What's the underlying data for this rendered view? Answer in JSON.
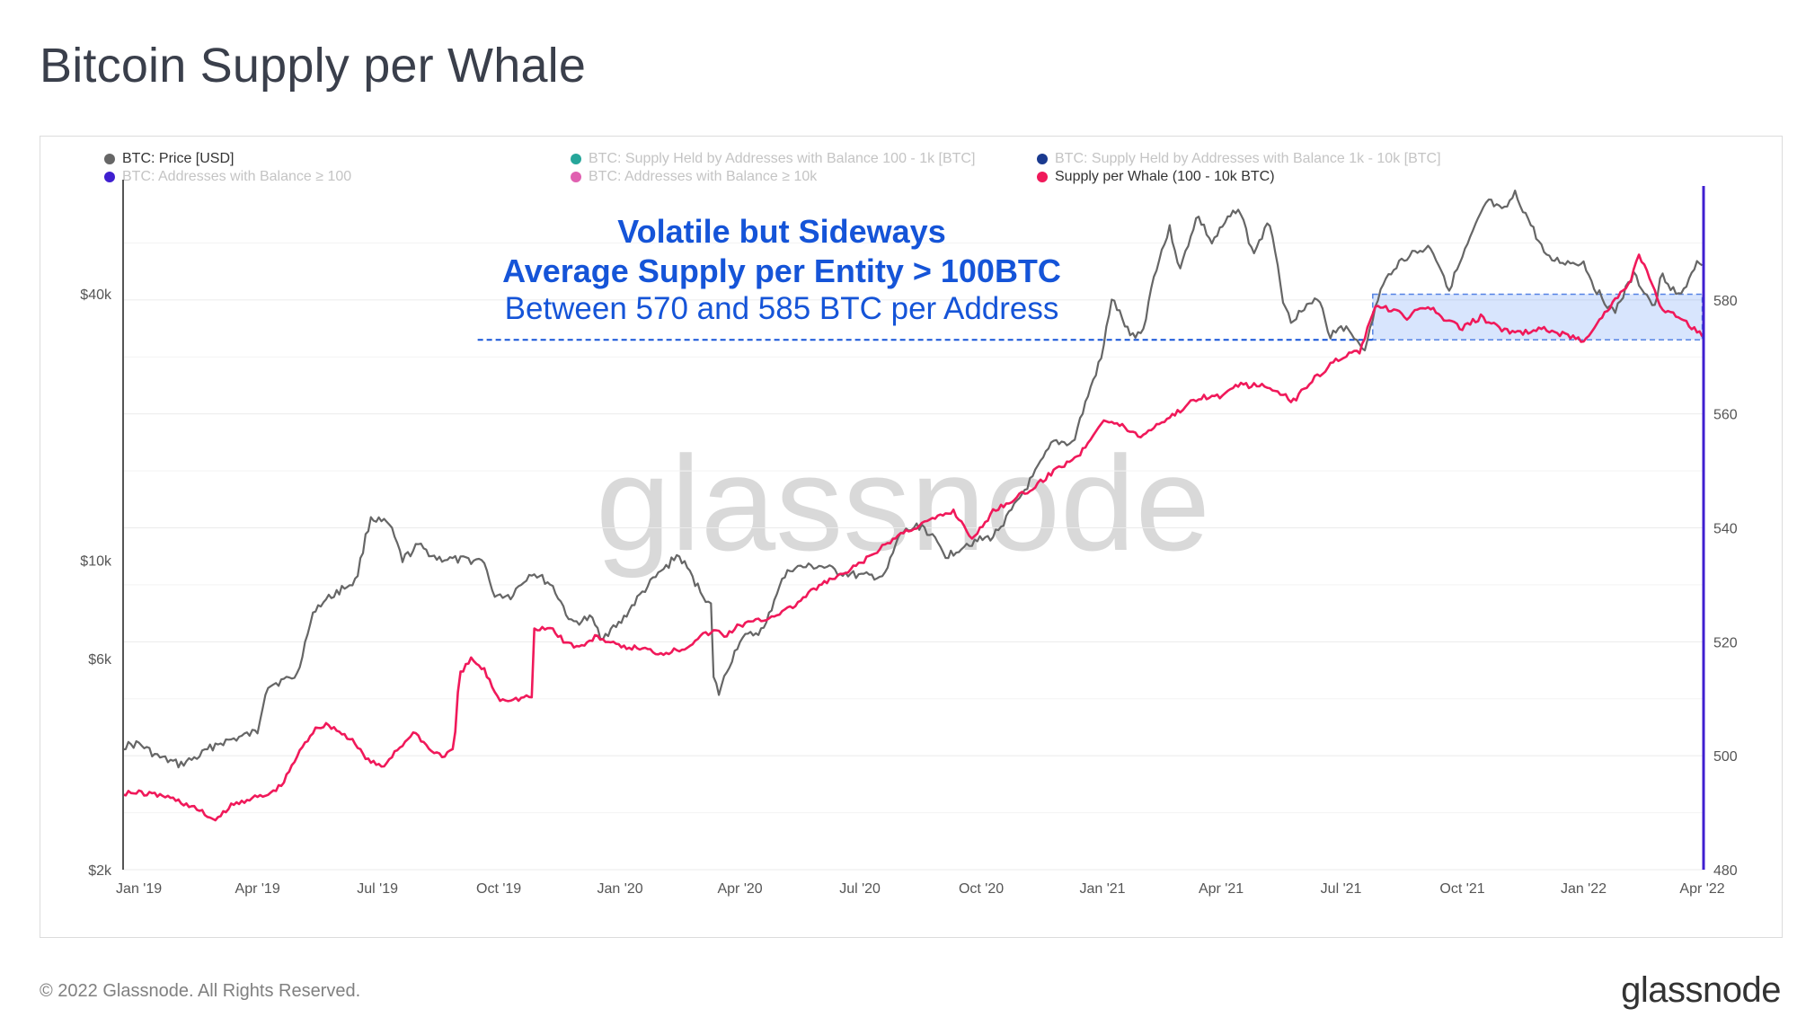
{
  "page": {
    "title": "Bitcoin Supply per Whale",
    "copyright": "© 2022 Glassnode. All Rights Reserved.",
    "brand": "glassnode"
  },
  "chart_data": {
    "type": "line",
    "watermark": "glassnode",
    "legend": [
      {
        "label": "BTC: Price [USD]",
        "color": "#666666",
        "active": true
      },
      {
        "label": "BTC: Supply Held by Addresses with Balance 100 - 1k [BTC]",
        "color": "#26a69a",
        "active": false
      },
      {
        "label": "BTC: Supply Held by Addresses with Balance 1k - 10k [BTC]",
        "color": "#1a3a8f",
        "active": false
      },
      {
        "label": "BTC: Addresses with Balance ≥ 100",
        "color": "#3f1fd0",
        "active": false
      },
      {
        "label": "BTC: Addresses with Balance ≥ 10k",
        "color": "#e060b0",
        "active": false
      },
      {
        "label": "Supply per Whale (100 - 10k BTC)",
        "color": "#f0195a",
        "active": true
      }
    ],
    "annotations": [
      "Volatile but Sideways",
      "Average Supply per Entity > 100BTC",
      "Between 570 and 585 BTC per Address"
    ],
    "x_axis": {
      "ticks": [
        "Jan '19",
        "Apr '19",
        "Jul '19",
        "Oct '19",
        "Jan '20",
        "Apr '20",
        "Jul '20",
        "Oct '20",
        "Jan '21",
        "Apr '21",
        "Jul '21",
        "Oct '21",
        "Jan '22",
        "Apr '22"
      ],
      "range": [
        "2018-12-20",
        "2022-04-02"
      ]
    },
    "y_axis_left": {
      "scale": "log",
      "unit": "USD",
      "range": [
        2000,
        70000
      ],
      "ticks": [
        {
          "value": 2000,
          "label": "$2k"
        },
        {
          "value": 6000,
          "label": "$6k"
        },
        {
          "value": 10000,
          "label": "$10k"
        },
        {
          "value": 40000,
          "label": "$40k"
        }
      ]
    },
    "y_axis_right": {
      "scale": "linear",
      "unit": "BTC",
      "range": [
        480,
        600
      ],
      "ticks": [
        480,
        500,
        520,
        540,
        560,
        580
      ]
    },
    "highlight_band": {
      "from": "2021-07-25",
      "to": "2022-04-01",
      "low": 573,
      "high": 581
    },
    "reference_line": {
      "from": "2019-09-15",
      "to": "2021-07-25",
      "value": 573
    },
    "series": [
      {
        "name": "BTC: Price [USD]",
        "axis": "left",
        "color": "#666666",
        "points": [
          [
            "2018-12-20",
            3800
          ],
          [
            "2019-01-01",
            3850
          ],
          [
            "2019-01-15",
            3600
          ],
          [
            "2019-02-01",
            3450
          ],
          [
            "2019-02-15",
            3600
          ],
          [
            "2019-03-01",
            3850
          ],
          [
            "2019-03-15",
            3950
          ],
          [
            "2019-04-01",
            4100
          ],
          [
            "2019-04-08",
            5200
          ],
          [
            "2019-04-25",
            5400
          ],
          [
            "2019-05-01",
            5500
          ],
          [
            "2019-05-15",
            7800
          ],
          [
            "2019-06-01",
            8500
          ],
          [
            "2019-06-15",
            9000
          ],
          [
            "2019-06-26",
            12500
          ],
          [
            "2019-07-10",
            12000
          ],
          [
            "2019-07-20",
            10000
          ],
          [
            "2019-08-01",
            10800
          ],
          [
            "2019-08-15",
            10100
          ],
          [
            "2019-09-01",
            10000
          ],
          [
            "2019-09-20",
            10000
          ],
          [
            "2019-09-26",
            8400
          ],
          [
            "2019-10-10",
            8300
          ],
          [
            "2019-10-26",
            9400
          ],
          [
            "2019-11-10",
            8800
          ],
          [
            "2019-11-25",
            7200
          ],
          [
            "2019-12-10",
            7400
          ],
          [
            "2019-12-18",
            6700
          ],
          [
            "2020-01-01",
            7200
          ],
          [
            "2020-01-20",
            8600
          ],
          [
            "2020-02-10",
            10000
          ],
          [
            "2020-02-14",
            10300
          ],
          [
            "2020-03-01",
            8600
          ],
          [
            "2020-03-10",
            7900
          ],
          [
            "2020-03-12",
            5400
          ],
          [
            "2020-03-16",
            5000
          ],
          [
            "2020-04-01",
            6600
          ],
          [
            "2020-04-20",
            7000
          ],
          [
            "2020-05-01",
            8800
          ],
          [
            "2020-05-10",
            9600
          ],
          [
            "2020-06-01",
            9700
          ],
          [
            "2020-06-15",
            9400
          ],
          [
            "2020-07-01",
            9200
          ],
          [
            "2020-07-20",
            9200
          ],
          [
            "2020-08-01",
            11500
          ],
          [
            "2020-08-17",
            12000
          ],
          [
            "2020-09-05",
            10200
          ],
          [
            "2020-09-20",
            10900
          ],
          [
            "2020-10-10",
            11300
          ],
          [
            "2020-10-25",
            13000
          ],
          [
            "2020-11-10",
            15500
          ],
          [
            "2020-11-25",
            18500
          ],
          [
            "2020-12-10",
            18400
          ],
          [
            "2020-12-20",
            23000
          ],
          [
            "2021-01-01",
            29000
          ],
          [
            "2021-01-08",
            39000
          ],
          [
            "2021-01-22",
            32000
          ],
          [
            "2021-02-01",
            33000
          ],
          [
            "2021-02-10",
            45000
          ],
          [
            "2021-02-21",
            56000
          ],
          [
            "2021-03-01",
            45000
          ],
          [
            "2021-03-14",
            60000
          ],
          [
            "2021-03-25",
            52000
          ],
          [
            "2021-04-14",
            63000
          ],
          [
            "2021-04-25",
            49000
          ],
          [
            "2021-05-08",
            58000
          ],
          [
            "2021-05-19",
            37000
          ],
          [
            "2021-05-24",
            35000
          ],
          [
            "2021-06-15",
            39000
          ],
          [
            "2021-06-22",
            32000
          ],
          [
            "2021-07-01",
            34000
          ],
          [
            "2021-07-20",
            30000
          ],
          [
            "2021-07-30",
            40000
          ],
          [
            "2021-08-10",
            46000
          ],
          [
            "2021-08-22",
            49000
          ],
          [
            "2021-09-07",
            51000
          ],
          [
            "2021-09-21",
            41000
          ],
          [
            "2021-10-01",
            48000
          ],
          [
            "2021-10-15",
            60000
          ],
          [
            "2021-10-20",
            65000
          ],
          [
            "2021-11-01",
            61000
          ],
          [
            "2021-11-10",
            67000
          ],
          [
            "2021-11-26",
            54000
          ],
          [
            "2021-12-04",
            48000
          ],
          [
            "2021-12-20",
            47000
          ],
          [
            "2022-01-01",
            47000
          ],
          [
            "2022-01-10",
            41000
          ],
          [
            "2022-01-24",
            36000
          ],
          [
            "2022-02-08",
            44000
          ],
          [
            "2022-02-24",
            37000
          ],
          [
            "2022-03-01",
            44000
          ],
          [
            "2022-03-15",
            39000
          ],
          [
            "2022-03-28",
            47000
          ],
          [
            "2022-04-01",
            45500
          ]
        ]
      },
      {
        "name": "Supply per Whale (100 - 10k BTC)",
        "axis": "right",
        "color": "#f0195a",
        "points": [
          [
            "2018-12-20",
            493.5
          ],
          [
            "2019-01-01",
            493.5
          ],
          [
            "2019-01-20",
            493
          ],
          [
            "2019-02-01",
            492
          ],
          [
            "2019-02-15",
            490.5
          ],
          [
            "2019-03-01",
            488.5
          ],
          [
            "2019-03-10",
            491
          ],
          [
            "2019-03-25",
            492.5
          ],
          [
            "2019-04-08",
            493
          ],
          [
            "2019-04-20",
            495
          ],
          [
            "2019-05-01",
            500
          ],
          [
            "2019-05-15",
            505
          ],
          [
            "2019-05-25",
            505.5
          ],
          [
            "2019-06-10",
            503
          ],
          [
            "2019-06-25",
            499
          ],
          [
            "2019-07-05",
            498
          ],
          [
            "2019-07-15",
            501
          ],
          [
            "2019-07-30",
            504
          ],
          [
            "2019-08-10",
            501
          ],
          [
            "2019-08-20",
            500
          ],
          [
            "2019-08-28",
            501
          ],
          [
            "2019-09-01",
            514
          ],
          [
            "2019-09-10",
            517
          ],
          [
            "2019-09-20",
            515
          ],
          [
            "2019-10-01",
            510
          ],
          [
            "2019-10-15",
            510
          ],
          [
            "2019-10-26",
            510.5
          ],
          [
            "2019-10-28",
            522
          ],
          [
            "2019-11-10",
            522.5
          ],
          [
            "2019-11-20",
            520
          ],
          [
            "2019-12-01",
            519
          ],
          [
            "2019-12-15",
            521
          ],
          [
            "2020-01-01",
            519
          ],
          [
            "2020-01-15",
            519
          ],
          [
            "2020-02-01",
            518
          ],
          [
            "2020-02-20",
            519
          ],
          [
            "2020-03-01",
            521
          ],
          [
            "2020-03-15",
            522
          ],
          [
            "2020-03-20",
            521
          ],
          [
            "2020-04-01",
            523
          ],
          [
            "2020-04-20",
            524
          ],
          [
            "2020-05-10",
            526
          ],
          [
            "2020-06-01",
            530
          ],
          [
            "2020-06-20",
            532
          ],
          [
            "2020-07-15",
            536
          ],
          [
            "2020-08-01",
            539
          ],
          [
            "2020-08-20",
            541
          ],
          [
            "2020-09-10",
            543
          ],
          [
            "2020-09-25",
            538
          ],
          [
            "2020-10-10",
            543
          ],
          [
            "2020-10-25",
            545
          ],
          [
            "2020-11-10",
            547
          ],
          [
            "2020-11-25",
            550
          ],
          [
            "2020-12-15",
            553
          ],
          [
            "2021-01-01",
            559
          ],
          [
            "2021-01-15",
            558
          ],
          [
            "2021-01-30",
            556
          ],
          [
            "2021-02-10",
            558
          ],
          [
            "2021-02-25",
            560
          ],
          [
            "2021-03-15",
            563
          ],
          [
            "2021-03-30",
            563
          ],
          [
            "2021-04-15",
            565
          ],
          [
            "2021-04-30",
            565
          ],
          [
            "2021-05-15",
            564
          ],
          [
            "2021-05-25",
            562
          ],
          [
            "2021-06-05",
            565
          ],
          [
            "2021-06-20",
            568
          ],
          [
            "2021-07-01",
            570
          ],
          [
            "2021-07-15",
            571
          ],
          [
            "2021-07-28",
            579
          ],
          [
            "2021-08-10",
            578
          ],
          [
            "2021-08-20",
            577
          ],
          [
            "2021-09-05",
            579
          ],
          [
            "2021-09-15",
            577
          ],
          [
            "2021-09-30",
            575
          ],
          [
            "2021-10-15",
            577
          ],
          [
            "2021-10-30",
            575
          ],
          [
            "2021-11-10",
            574
          ],
          [
            "2021-11-30",
            575
          ],
          [
            "2021-12-15",
            574
          ],
          [
            "2022-01-01",
            573
          ],
          [
            "2022-01-15",
            577
          ],
          [
            "2022-01-25",
            580
          ],
          [
            "2022-02-05",
            583
          ],
          [
            "2022-02-12",
            588
          ],
          [
            "2022-02-22",
            583
          ],
          [
            "2022-03-01",
            578
          ],
          [
            "2022-03-15",
            577
          ],
          [
            "2022-03-25",
            575
          ],
          [
            "2022-04-01",
            574
          ]
        ]
      }
    ]
  }
}
